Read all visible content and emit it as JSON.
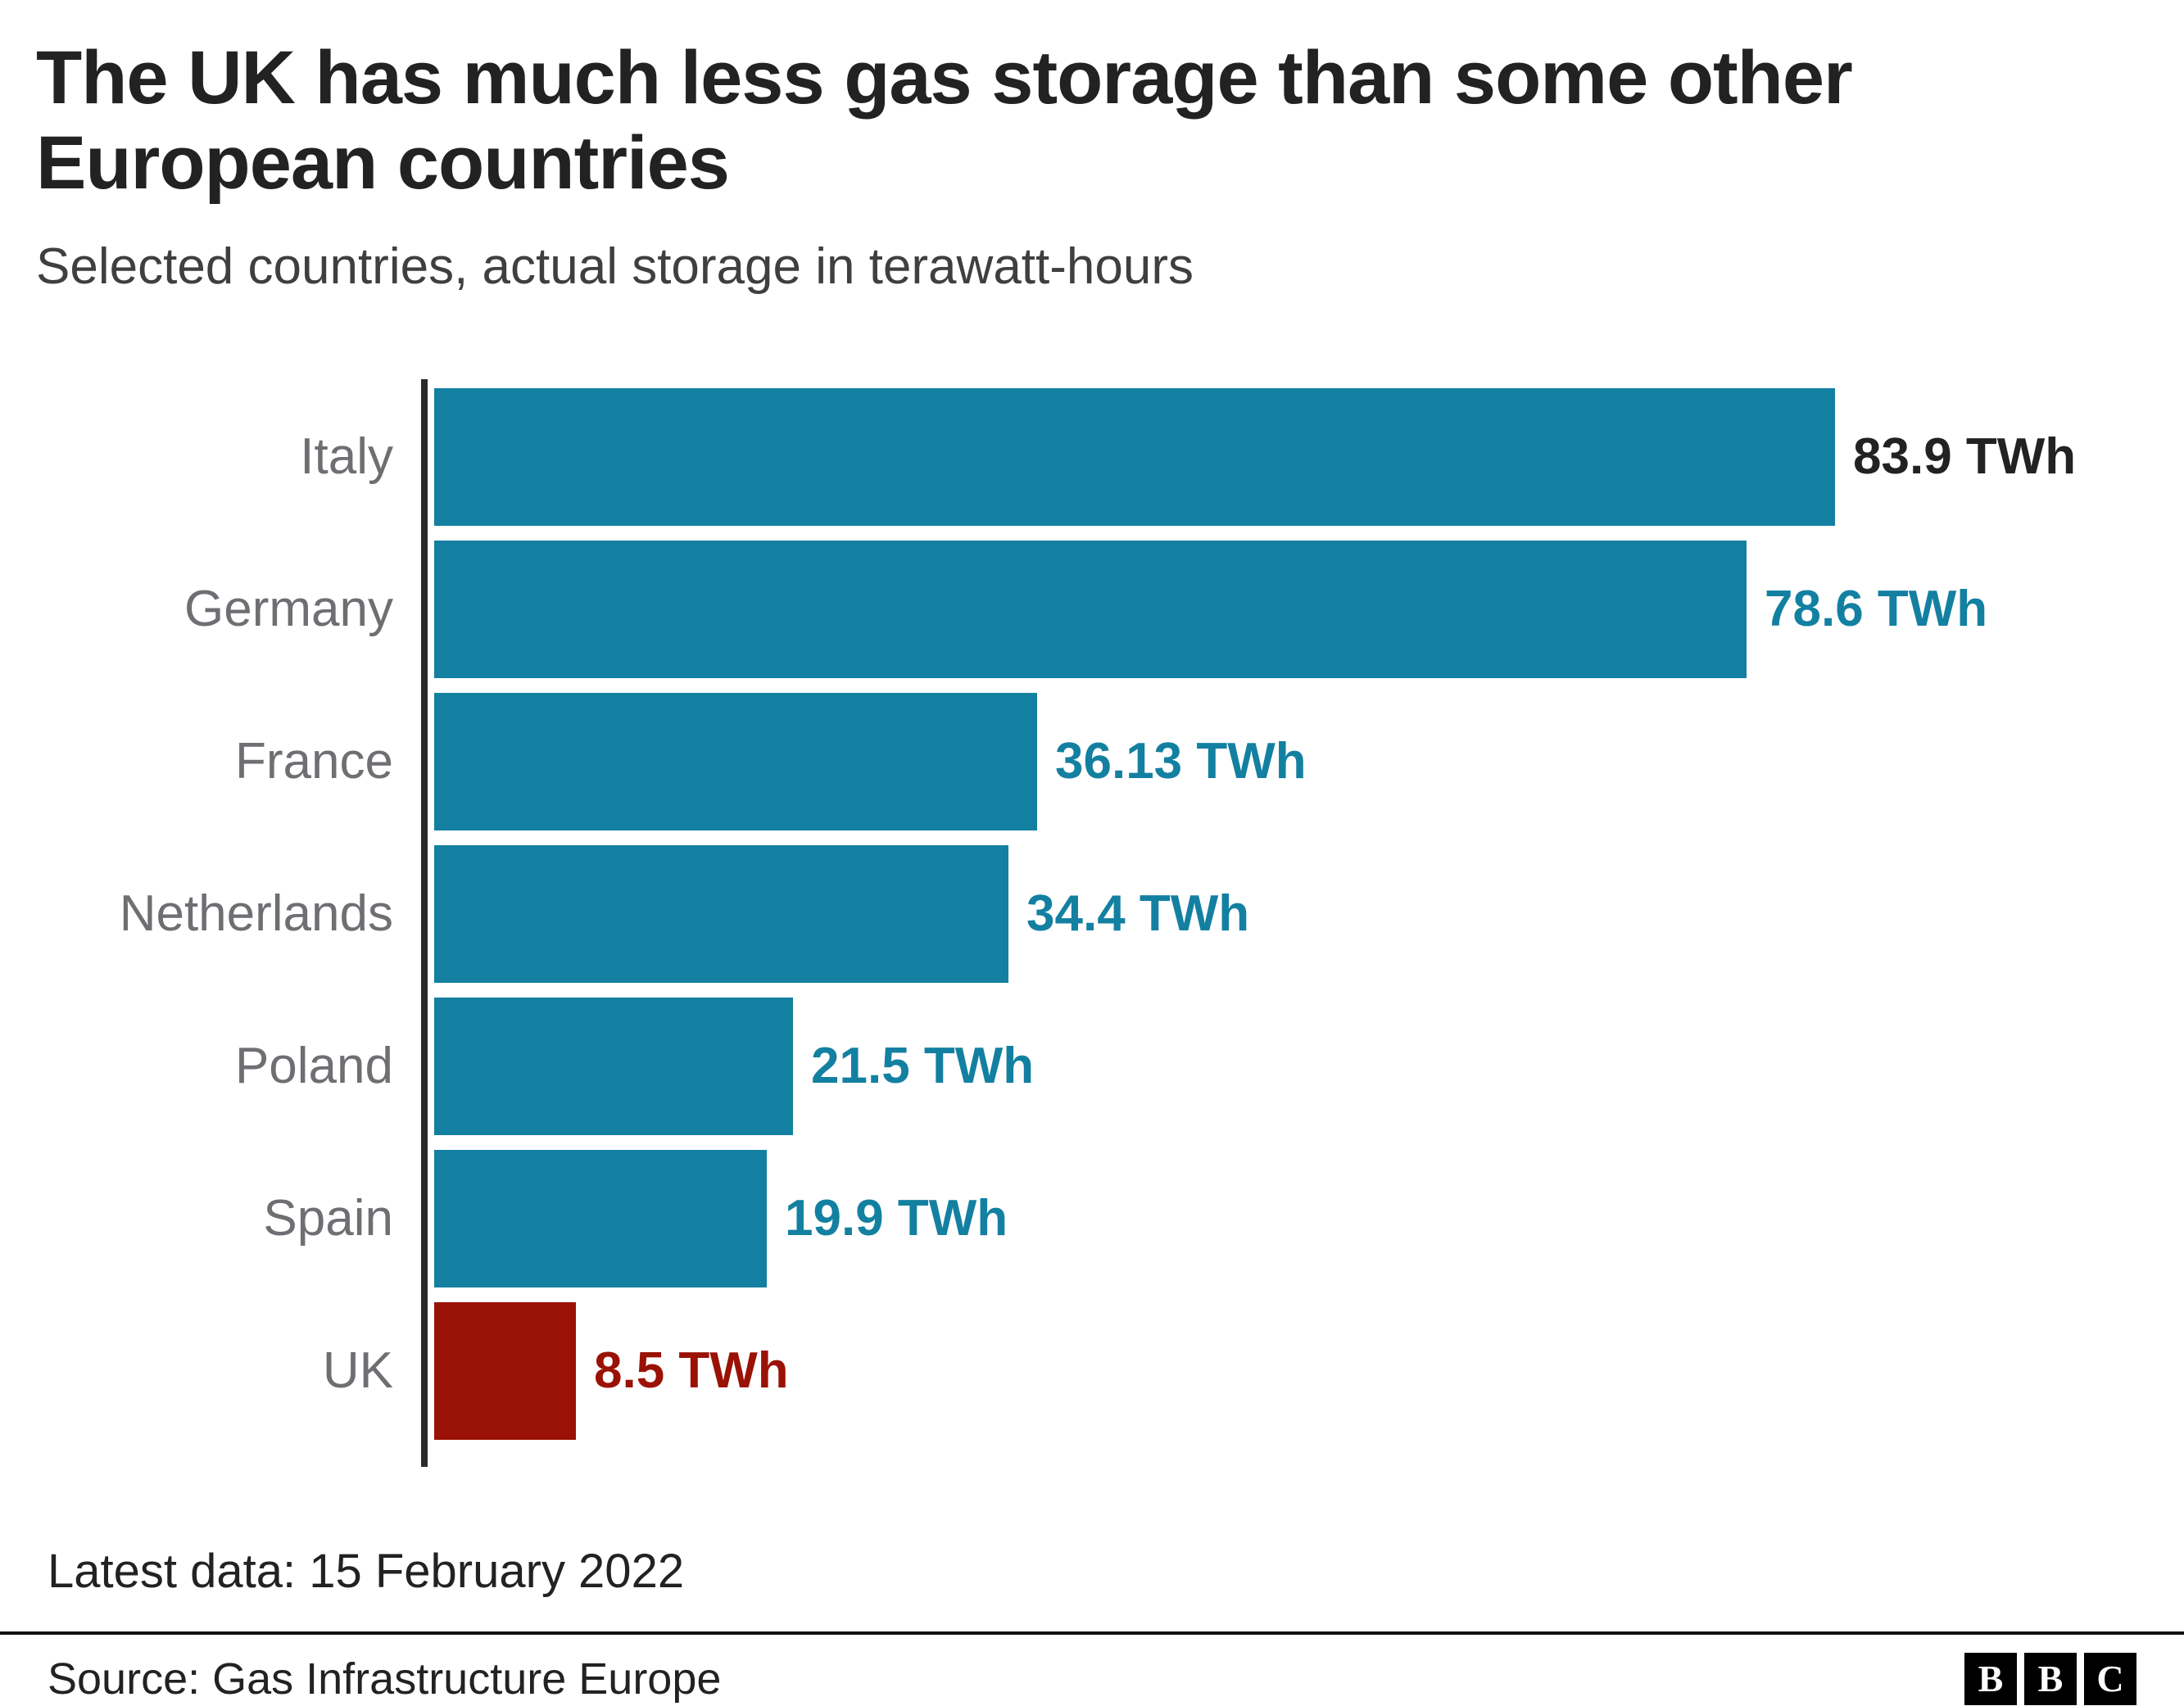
{
  "title": "The UK has much less gas storage than some other European countries",
  "subtitle": "Selected countries, actual storage in terawatt-hours",
  "chart_data": {
    "type": "bar",
    "orientation": "horizontal",
    "title": "The UK has much less gas storage than some other European countries",
    "subtitle": "Selected countries, actual storage in terawatt-hours",
    "categories": [
      "Italy",
      "Germany",
      "France",
      "Netherlands",
      "Poland",
      "Spain",
      "UK"
    ],
    "values": [
      83.9,
      78.6,
      36.13,
      34.4,
      21.5,
      19.9,
      8.5
    ],
    "value_labels": [
      "83.9 TWh",
      "78.6 TWh",
      "36.13 TWh",
      "34.4 TWh",
      "21.5 TWh",
      "19.9 TWh",
      "8.5 TWh"
    ],
    "bar_colors": [
      "#1380A1",
      "#1380A1",
      "#1380A1",
      "#1380A1",
      "#1380A1",
      "#1380A1",
      "#9A1206"
    ],
    "value_label_colors": [
      "#222222",
      "#1380A1",
      "#1380A1",
      "#1380A1",
      "#1380A1",
      "#1380A1",
      "#9A1206"
    ],
    "unit": "TWh",
    "xlim": [
      0,
      90
    ],
    "grid": false,
    "legend": false
  },
  "footer": {
    "latest_data": "Latest data: 15 February 2022",
    "source": "Source: Gas Infrastructure Europe"
  },
  "logo": {
    "blocks": [
      "B",
      "B",
      "C"
    ]
  },
  "colors": {
    "bar_teal": "#1380A1",
    "bar_red": "#9A1206",
    "axis": "#2B2B2B",
    "category_label": "#6E6E73",
    "title_text": "#222222"
  }
}
